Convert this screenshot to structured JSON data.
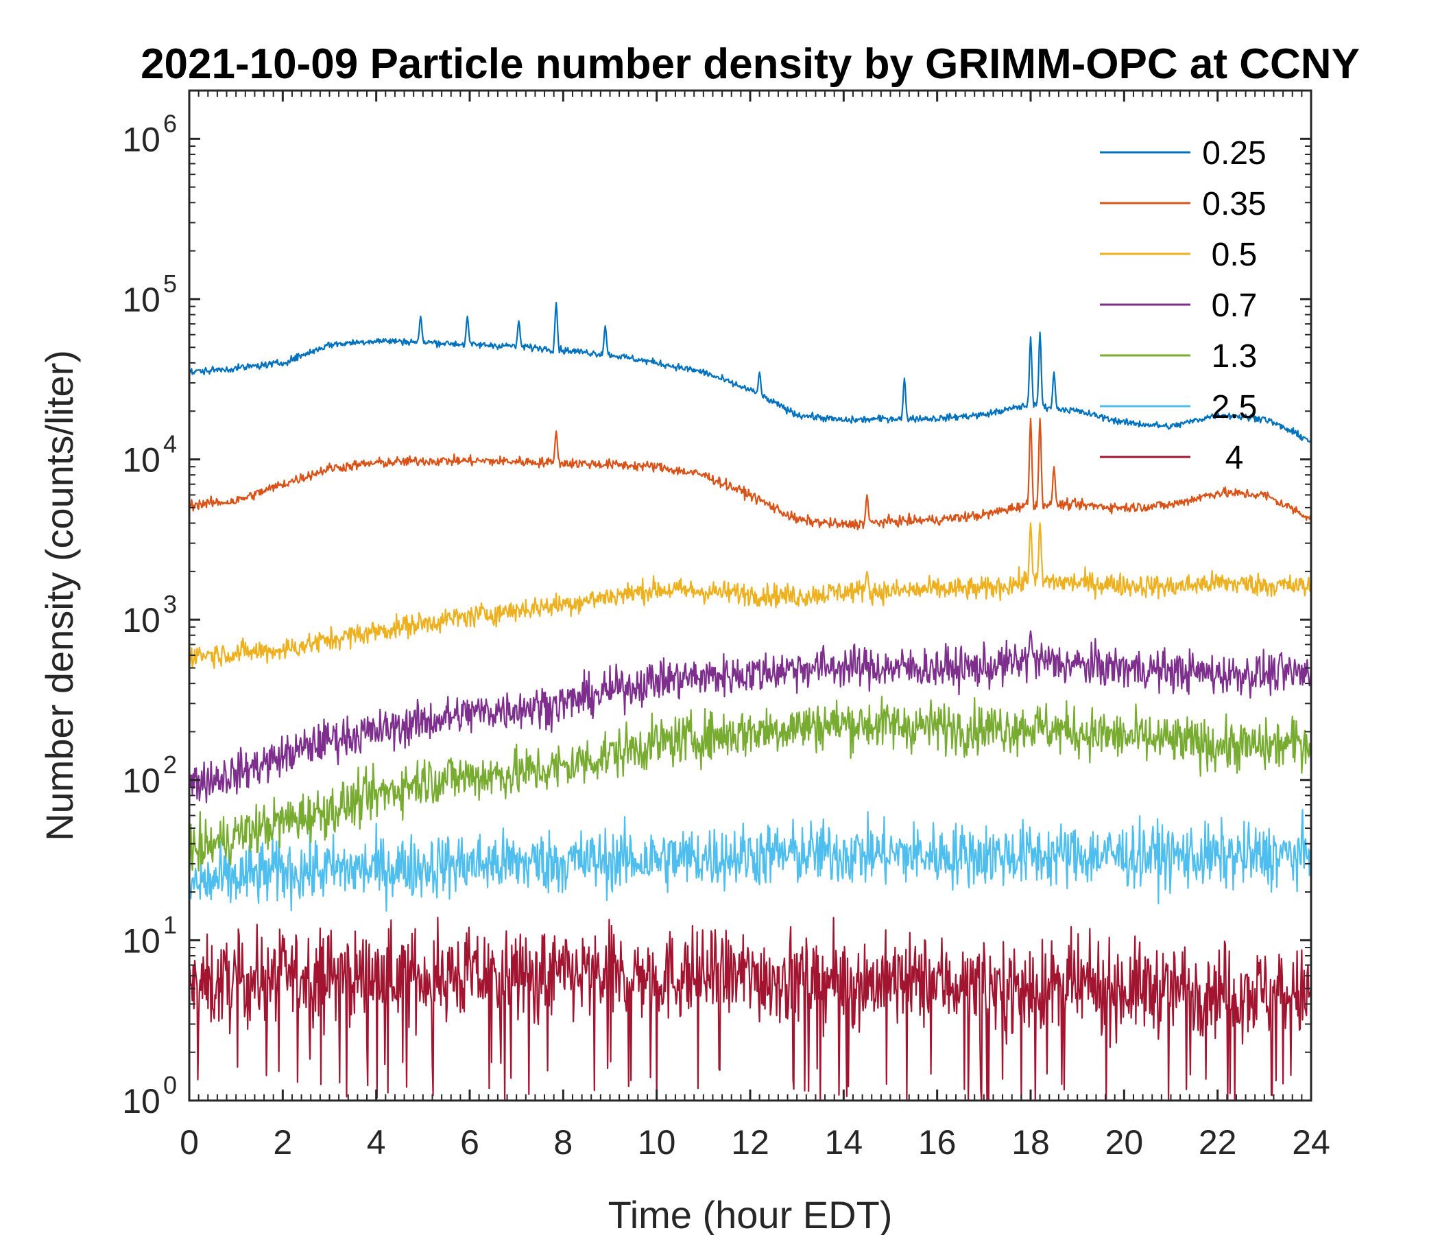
{
  "chart_data": {
    "type": "line",
    "title": "2021-10-09 Particle number density by GRIMM-OPC at CCNY",
    "xlabel": "Time (hour EDT)",
    "ylabel": "Number density (counts/liter)",
    "xlim": [
      0,
      24
    ],
    "ylim": [
      1,
      2000000
    ],
    "yscale": "log",
    "legend_position": "top-right",
    "x_ticks": [
      {
        "value": 0,
        "label": "0"
      },
      {
        "value": 2,
        "label": "2"
      },
      {
        "value": 4,
        "label": "4"
      },
      {
        "value": 6,
        "label": "6"
      },
      {
        "value": 8,
        "label": "8"
      },
      {
        "value": 10,
        "label": "10"
      },
      {
        "value": 12,
        "label": "12"
      },
      {
        "value": 14,
        "label": "14"
      },
      {
        "value": 16,
        "label": "16"
      },
      {
        "value": 18,
        "label": "18"
      },
      {
        "value": 20,
        "label": "20"
      },
      {
        "value": 22,
        "label": "22"
      },
      {
        "value": 24,
        "label": "24"
      }
    ],
    "y_ticks": [
      {
        "value": 1,
        "base": "10",
        "exp": "0"
      },
      {
        "value": 10,
        "base": "10",
        "exp": "1"
      },
      {
        "value": 100,
        "base": "10",
        "exp": "2"
      },
      {
        "value": 1000,
        "base": "10",
        "exp": "3"
      },
      {
        "value": 10000,
        "base": "10",
        "exp": "4"
      },
      {
        "value": 100000,
        "base": "10",
        "exp": "5"
      },
      {
        "value": 1000000,
        "base": "10",
        "exp": "6"
      }
    ],
    "series": [
      {
        "name": "0.25",
        "color": "#0072BD",
        "noise": 0.015,
        "x": [
          0,
          1,
          2,
          3,
          4,
          5,
          6,
          7,
          8,
          9,
          10,
          11,
          12,
          13,
          14,
          15,
          16,
          17,
          18,
          18.5,
          19,
          20,
          21,
          22,
          23,
          24
        ],
        "values": [
          35000,
          37000,
          40000,
          52000,
          55000,
          54000,
          52000,
          51000,
          48000,
          45000,
          40000,
          35000,
          27000,
          19000,
          17500,
          18000,
          18000,
          19000,
          22000,
          21000,
          20000,
          17000,
          16000,
          19000,
          18000,
          13000
        ],
        "spikes": [
          [
            4.95,
            78000
          ],
          [
            5.95,
            78000
          ],
          [
            7.05,
            73000
          ],
          [
            7.85,
            95000
          ],
          [
            8.9,
            68000
          ],
          [
            12.2,
            35000
          ],
          [
            15.3,
            32000
          ],
          [
            18.0,
            58000
          ],
          [
            18.2,
            62000
          ],
          [
            18.5,
            35000
          ]
        ]
      },
      {
        "name": "0.35",
        "color": "#D95319",
        "noise": 0.022,
        "x": [
          0,
          1,
          2,
          3,
          4,
          5,
          6,
          7,
          8,
          9,
          10,
          11,
          12,
          13,
          14,
          15,
          16,
          17,
          18,
          19,
          20,
          21,
          22,
          23,
          24
        ],
        "values": [
          5200,
          5500,
          7000,
          8800,
          9500,
          9800,
          9800,
          9700,
          9500,
          9300,
          9000,
          8000,
          6000,
          4200,
          3900,
          4100,
          4200,
          4500,
          5300,
          5200,
          5000,
          5200,
          6200,
          6000,
          4300
        ],
        "spikes": [
          [
            7.85,
            15000
          ],
          [
            18.0,
            18000
          ],
          [
            18.2,
            18000
          ],
          [
            18.5,
            9000
          ],
          [
            14.5,
            6000
          ]
        ]
      },
      {
        "name": "0.5",
        "color": "#EDB120",
        "noise": 0.05,
        "x": [
          0,
          1,
          2,
          3,
          4,
          5,
          6,
          7,
          8,
          9,
          10,
          11,
          12,
          13,
          14,
          15,
          16,
          17,
          18,
          19,
          20,
          21,
          22,
          23,
          24
        ],
        "values": [
          600,
          620,
          650,
          750,
          850,
          950,
          1050,
          1150,
          1250,
          1400,
          1550,
          1500,
          1450,
          1400,
          1500,
          1500,
          1550,
          1550,
          1750,
          1700,
          1650,
          1600,
          1700,
          1650,
          1600
        ],
        "spikes": [
          [
            18.0,
            4000
          ],
          [
            18.2,
            4000
          ],
          [
            14.5,
            2000
          ]
        ]
      },
      {
        "name": "0.7",
        "color": "#7E2F8E",
        "noise": 0.09,
        "x": [
          0,
          1,
          2,
          3,
          4,
          5,
          6,
          7,
          8,
          9,
          10,
          11,
          12,
          13,
          14,
          15,
          16,
          17,
          18,
          19,
          20,
          21,
          22,
          23,
          24
        ],
        "values": [
          95,
          110,
          140,
          180,
          200,
          230,
          260,
          280,
          300,
          360,
          420,
          440,
          460,
          500,
          510,
          500,
          500,
          500,
          560,
          520,
          500,
          480,
          460,
          460,
          460
        ],
        "spikes": [
          [
            18.0,
            850
          ]
        ]
      },
      {
        "name": "1.3",
        "color": "#77AC30",
        "noise": 0.11,
        "x": [
          0,
          1,
          2,
          3,
          4,
          5,
          6,
          7,
          8,
          9,
          10,
          11,
          12,
          13,
          14,
          15,
          16,
          17,
          18,
          19,
          20,
          21,
          22,
          23,
          24
        ],
        "values": [
          35,
          45,
          55,
          65,
          80,
          100,
          105,
          110,
          120,
          145,
          170,
          185,
          200,
          215,
          225,
          220,
          215,
          210,
          215,
          200,
          185,
          175,
          165,
          160,
          175
        ],
        "spikes": []
      },
      {
        "name": "2.5",
        "color": "#4DBEEE",
        "noise": 0.14,
        "x": [
          0,
          2,
          4,
          6,
          8,
          10,
          12,
          14,
          16,
          18,
          20,
          22,
          24
        ],
        "values": [
          22,
          27,
          28,
          30,
          31,
          32,
          34,
          35,
          34,
          34,
          34,
          33,
          34
        ],
        "spikes": []
      },
      {
        "name": "4",
        "color": "#A2142F",
        "noise": 0.2,
        "x": [
          0,
          2,
          4,
          6,
          8,
          10,
          12,
          14,
          16,
          18,
          20,
          22,
          24
        ],
        "values": [
          5,
          6,
          6,
          6,
          6,
          6,
          6,
          5.5,
          5.5,
          5,
          5,
          5,
          4.5
        ],
        "spikes": []
      }
    ]
  }
}
